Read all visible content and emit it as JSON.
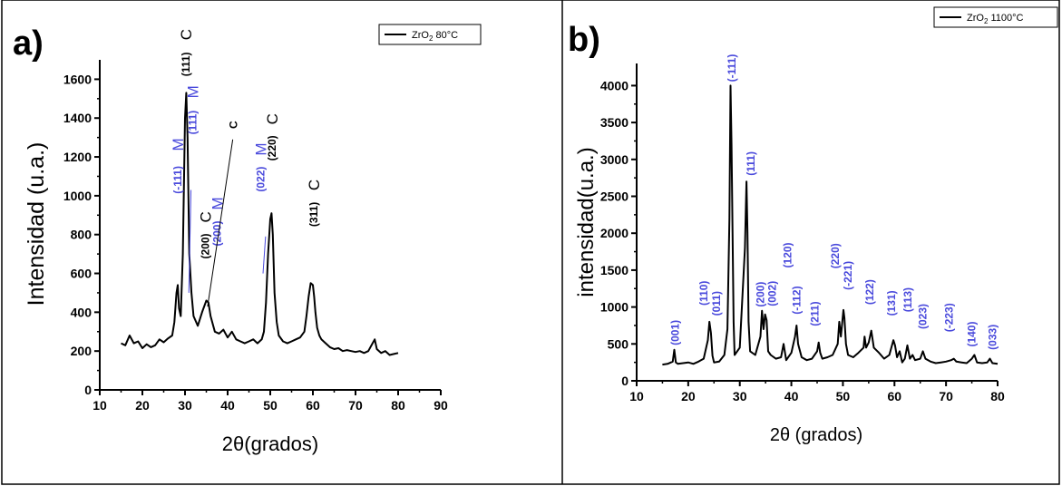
{
  "chart_data": [
    {
      "type": "line",
      "panel_label": "a)",
      "legend_label": "ZrO",
      "legend_sub": "2",
      "legend_suffix": " 80°C",
      "xlabel": "2θ(grados)",
      "ylabel": "Intensidad (u.a.)",
      "xlim": [
        10,
        90
      ],
      "ylim": [
        0,
        1700
      ],
      "xticks": [
        10,
        20,
        30,
        40,
        50,
        60,
        70,
        80,
        90
      ],
      "yticks": [
        0,
        200,
        400,
        600,
        800,
        1000,
        1200,
        1400,
        1600
      ],
      "line_color": "#000000",
      "series": [
        {
          "x": [
            15,
            16,
            17,
            18,
            19,
            20,
            21,
            22,
            23,
            24,
            25,
            26,
            27,
            27.5,
            28,
            28.3,
            28.6,
            29,
            29.5,
            30,
            30.3,
            30.6,
            31,
            31.5,
            32,
            33,
            34,
            35,
            35.5,
            36,
            37,
            38,
            39,
            40,
            41,
            42,
            43,
            44,
            45,
            46,
            47,
            48,
            48.5,
            49,
            49.5,
            50,
            50.3,
            50.6,
            51,
            51.5,
            52,
            53,
            54,
            55,
            56,
            57,
            58,
            58.5,
            59,
            59.5,
            60,
            60.3,
            60.6,
            61,
            61.5,
            62,
            63,
            64,
            65,
            66,
            67,
            68,
            69,
            70,
            71,
            72,
            73,
            74,
            74.5,
            75,
            76,
            77,
            78,
            79,
            80
          ],
          "y": [
            240,
            230,
            280,
            240,
            250,
            215,
            235,
            220,
            230,
            260,
            245,
            265,
            280,
            350,
            500,
            540,
            420,
            380,
            700,
            1400,
            1530,
            1300,
            700,
            500,
            380,
            330,
            400,
            460,
            450,
            380,
            300,
            290,
            310,
            270,
            300,
            260,
            250,
            240,
            250,
            260,
            240,
            260,
            300,
            450,
            700,
            880,
            910,
            800,
            500,
            350,
            280,
            250,
            240,
            250,
            260,
            270,
            300,
            380,
            480,
            550,
            540,
            480,
            400,
            320,
            280,
            260,
            240,
            220,
            210,
            215,
            200,
            205,
            200,
            195,
            200,
            190,
            200,
            240,
            260,
            210,
            190,
            200,
            180,
            185,
            190
          ]
        }
      ],
      "annotations": [
        {
          "text": "(111)",
          "suffix": "C",
          "x": 30.2,
          "y": 1615,
          "color": "#000000"
        },
        {
          "text": "(-111)",
          "suffix": "M",
          "x": 28.3,
          "y": 1010,
          "color": "#4a4adc"
        },
        {
          "text": "(111)",
          "suffix": "M",
          "x": 31.8,
          "y": 1315,
          "color": "#4a4adc"
        },
        {
          "text": "(200)",
          "suffix": "C",
          "x": 34.8,
          "y": 675,
          "color": "#000000"
        },
        {
          "text": "(200)",
          "suffix": "M",
          "x": 37.6,
          "y": 740,
          "color": "#4a4adc"
        },
        {
          "text": "C",
          "suffix": "",
          "x": 41.4,
          "y": 1345,
          "color": "#000000"
        },
        {
          "text": "(022)",
          "suffix": "M",
          "x": 47.8,
          "y": 1020,
          "color": "#4a4adc"
        },
        {
          "text": "(220)",
          "suffix": "C",
          "x": 50.4,
          "y": 1180,
          "color": "#000000"
        },
        {
          "text": "(311)",
          "suffix": "C",
          "x": 60.2,
          "y": 840,
          "color": "#000000"
        }
      ]
    },
    {
      "type": "line",
      "panel_label": "b)",
      "legend_label": "ZrO",
      "legend_sub": "2",
      "legend_suffix": " 1100°C",
      "xlabel": "2θ (grados)",
      "ylabel": "intensidad(u.a.)",
      "xlim": [
        10,
        80
      ],
      "ylim": [
        0,
        4300
      ],
      "xticks": [
        10,
        20,
        30,
        40,
        50,
        60,
        70,
        80
      ],
      "yticks": [
        0,
        500,
        1000,
        1500,
        2000,
        2500,
        3000,
        3500,
        4000
      ],
      "line_color": "#000000",
      "series": [
        {
          "x": [
            15,
            16,
            17,
            17.3,
            17.6,
            18,
            19,
            20,
            21,
            22,
            23,
            23.8,
            24.1,
            24.4,
            24.7,
            25,
            26,
            27,
            27.6,
            28,
            28.2,
            28.4,
            28.8,
            29,
            30,
            31,
            31.3,
            31.5,
            31.7,
            32,
            33,
            34,
            34.3,
            34.6,
            34.9,
            35.2,
            35.5,
            36,
            37,
            38,
            38.5,
            39,
            40,
            40.7,
            41,
            41.3,
            42,
            43,
            44,
            45,
            45.3,
            45.6,
            46,
            47,
            48,
            49,
            49.3,
            49.6,
            50.1,
            50.3,
            50.6,
            51,
            52,
            53,
            54,
            54.2,
            54.5,
            55,
            55.5,
            56,
            57,
            58,
            59,
            59.8,
            60.1,
            60.5,
            61,
            61.5,
            62,
            62.5,
            63,
            63.5,
            64,
            65,
            65.5,
            66,
            67,
            68,
            69,
            70,
            71,
            71.5,
            72,
            73,
            74,
            75,
            75.5,
            76,
            77,
            78,
            78.5,
            79,
            80
          ],
          "y": [
            220,
            230,
            260,
            420,
            250,
            230,
            240,
            250,
            230,
            260,
            300,
            550,
            800,
            650,
            340,
            250,
            260,
            350,
            700,
            2200,
            4000,
            3200,
            800,
            350,
            450,
            1800,
            2700,
            2000,
            800,
            400,
            350,
            600,
            950,
            700,
            900,
            820,
            400,
            350,
            300,
            320,
            500,
            280,
            380,
            600,
            750,
            500,
            320,
            280,
            300,
            400,
            520,
            380,
            300,
            320,
            350,
            500,
            800,
            600,
            960,
            850,
            500,
            350,
            320,
            380,
            450,
            600,
            450,
            520,
            680,
            450,
            380,
            300,
            350,
            550,
            480,
            320,
            400,
            250,
            300,
            480,
            300,
            350,
            280,
            300,
            400,
            300,
            260,
            240,
            250,
            260,
            280,
            300,
            260,
            250,
            240,
            300,
            350,
            250,
            240,
            250,
            300,
            240,
            230
          ]
        }
      ],
      "annotations": [
        {
          "text": "(001)",
          "x": 17.5,
          "y": 480,
          "color": "#4a4adc"
        },
        {
          "text": "(110)",
          "x": 23.0,
          "y": 1020,
          "color": "#4a4adc"
        },
        {
          "text": "(011)",
          "x": 25.5,
          "y": 880,
          "color": "#4a4adc"
        },
        {
          "text": "(-111)",
          "x": 28.5,
          "y": 4050,
          "color": "#4a4adc"
        },
        {
          "text": "(111)",
          "x": 32.2,
          "y": 2780,
          "color": "#4a4adc"
        },
        {
          "text": "(200)",
          "x": 34.0,
          "y": 1000,
          "color": "#4a4adc"
        },
        {
          "text": "(002)",
          "x": 36.3,
          "y": 1010,
          "color": "#4a4adc"
        },
        {
          "text": "(120)",
          "x": 39.3,
          "y": 1530,
          "color": "#4a4adc"
        },
        {
          "text": "(-112)",
          "x": 41.0,
          "y": 900,
          "color": "#4a4adc"
        },
        {
          "text": "(211)",
          "x": 44.6,
          "y": 740,
          "color": "#4a4adc"
        },
        {
          "text": "(220)",
          "x": 48.5,
          "y": 1520,
          "color": "#4a4adc"
        },
        {
          "text": "(-221)",
          "x": 51.0,
          "y": 1230,
          "color": "#4a4adc"
        },
        {
          "text": "(122)",
          "x": 55.2,
          "y": 1030,
          "color": "#4a4adc"
        },
        {
          "text": "(131)",
          "x": 59.4,
          "y": 880,
          "color": "#4a4adc"
        },
        {
          "text": "(113)",
          "x": 62.6,
          "y": 930,
          "color": "#4a4adc"
        },
        {
          "text": "(023)",
          "x": 65.5,
          "y": 700,
          "color": "#4a4adc"
        },
        {
          "text": "(-223)",
          "x": 70.6,
          "y": 660,
          "color": "#4a4adc"
        },
        {
          "text": "(140)",
          "x": 75.0,
          "y": 460,
          "color": "#4a4adc"
        },
        {
          "text": "(033)",
          "x": 79.0,
          "y": 420,
          "color": "#4a4adc"
        }
      ]
    }
  ]
}
